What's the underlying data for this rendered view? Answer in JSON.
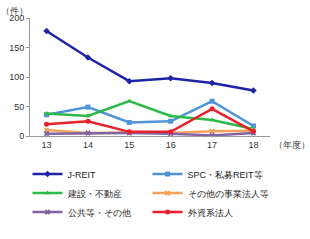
{
  "chart_data": {
    "type": "line",
    "y_label": "（件）",
    "x_label": "（年度）",
    "categories": [
      "13",
      "14",
      "15",
      "16",
      "17",
      "18"
    ],
    "ylim": [
      0,
      200
    ],
    "yticks": [
      0,
      50,
      100,
      150,
      200
    ],
    "grid": false,
    "legend": "bottom",
    "series": [
      {
        "name": "J-REIT",
        "color": "#1f23a6",
        "marker": "diamond",
        "values": [
          178,
          133,
          93,
          98,
          90,
          77
        ]
      },
      {
        "name": "SPC・私募REIT等",
        "color": "#4f94d8",
        "marker": "square",
        "values": [
          36,
          49,
          23,
          25,
          59,
          17
        ]
      },
      {
        "name": "建設・不動産",
        "color": "#2eb84a",
        "marker": "triangle-up",
        "values": [
          38,
          34,
          59,
          34,
          27,
          12
        ]
      },
      {
        "name": "その他の事業法人等",
        "color": "#f5a25d",
        "marker": "x",
        "values": [
          10,
          5,
          6,
          5,
          8,
          9
        ]
      },
      {
        "name": "公共等・その他",
        "color": "#8064a2",
        "marker": "x",
        "values": [
          4,
          5,
          5,
          4,
          1,
          5
        ]
      },
      {
        "name": "外資系法人",
        "color": "#e8202a",
        "marker": "circle",
        "values": [
          20,
          25,
          7,
          7,
          46,
          8
        ]
      }
    ]
  }
}
